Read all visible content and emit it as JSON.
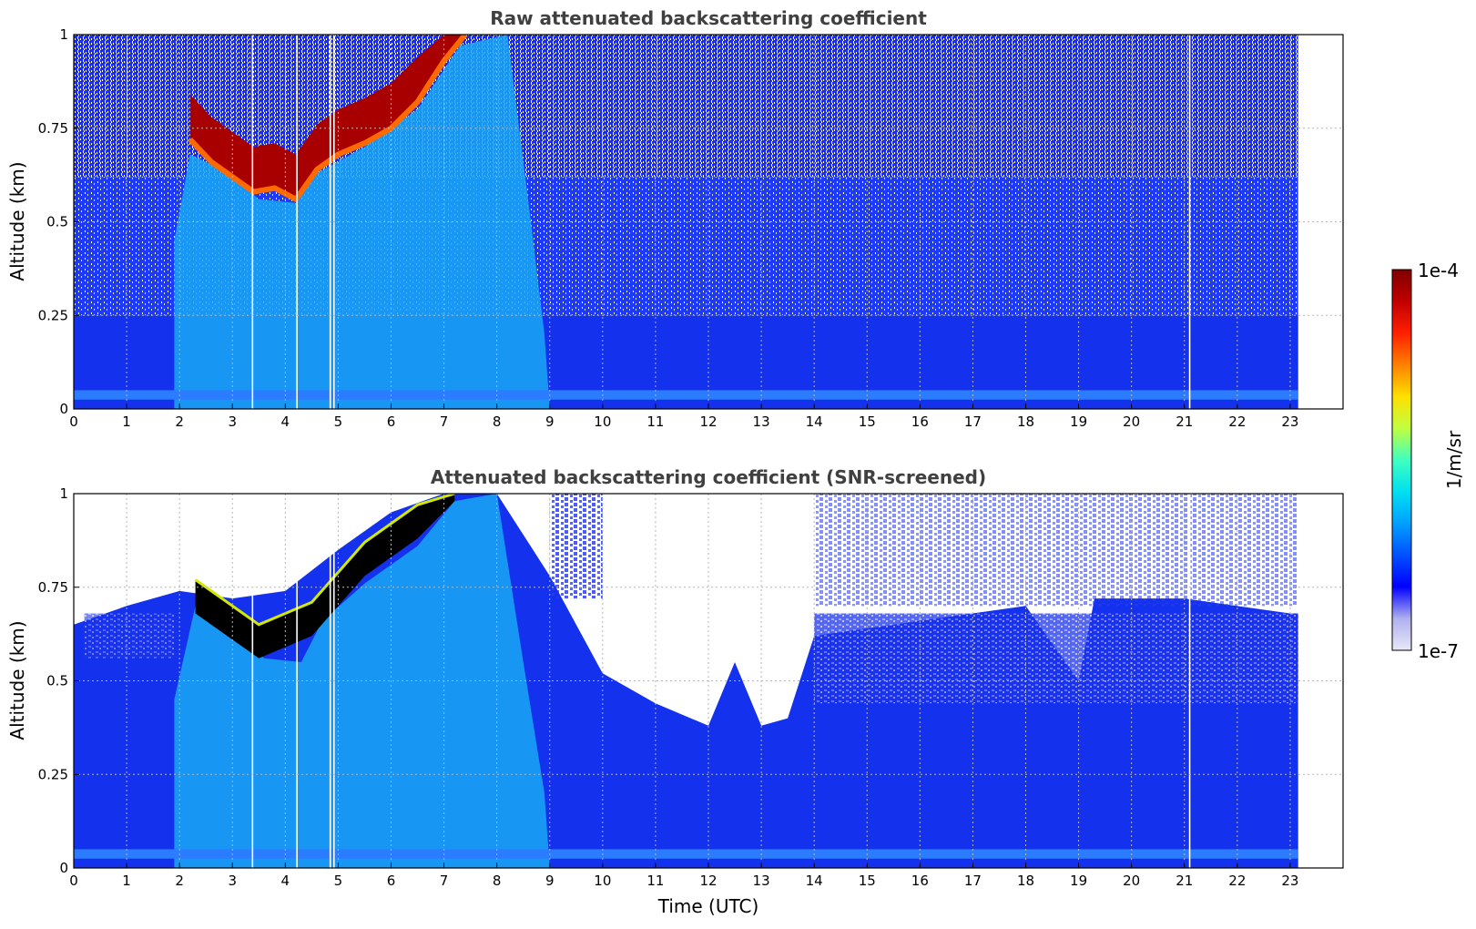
{
  "chart_data": [
    {
      "type": "heatmap",
      "title": "Raw attenuated backscattering coefficient",
      "xlabel": "",
      "ylabel": "Altitude (km)",
      "xlim": [
        0,
        24
      ],
      "ylim": [
        0,
        1
      ],
      "xticks": [
        "0",
        "1",
        "2",
        "3",
        "4",
        "5",
        "6",
        "7",
        "8",
        "9",
        "10",
        "11",
        "12",
        "13",
        "14",
        "15",
        "16",
        "17",
        "18",
        "19",
        "20",
        "21",
        "22",
        "23"
      ],
      "yticks": [
        "0",
        "0.25",
        "0.5",
        "0.75",
        "1"
      ],
      "ytick_values": [
        0,
        0.25,
        0.5,
        0.75,
        1
      ],
      "grid": true,
      "data_end_time": 23.15,
      "color_scale": "log",
      "cloud_base_km": [
        {
          "time": 2.2,
          "altitude": 0.72
        },
        {
          "time": 2.6,
          "altitude": 0.66
        },
        {
          "time": 3.0,
          "altitude": 0.62
        },
        {
          "time": 3.4,
          "altitude": 0.58
        },
        {
          "time": 3.8,
          "altitude": 0.59
        },
        {
          "time": 4.2,
          "altitude": 0.56
        },
        {
          "time": 4.6,
          "altitude": 0.64
        },
        {
          "time": 5.0,
          "altitude": 0.68
        },
        {
          "time": 5.5,
          "altitude": 0.71
        },
        {
          "time": 6.0,
          "altitude": 0.75
        },
        {
          "time": 6.5,
          "altitude": 0.82
        },
        {
          "time": 7.0,
          "altitude": 0.93
        },
        {
          "time": 7.4,
          "altitude": 1.0
        }
      ],
      "data_gap_times": [
        3.38,
        4.22,
        4.85,
        4.92,
        21.1
      ]
    },
    {
      "type": "heatmap",
      "title": "Attenuated backscattering coefficient (SNR-screened)",
      "xlabel": "Time (UTC)",
      "ylabel": "Altitude (km)",
      "xlim": [
        0,
        24
      ],
      "ylim": [
        0,
        1
      ],
      "xticks": [
        "0",
        "1",
        "2",
        "3",
        "4",
        "5",
        "6",
        "7",
        "8",
        "9",
        "10",
        "11",
        "12",
        "13",
        "14",
        "15",
        "16",
        "17",
        "18",
        "19",
        "20",
        "21",
        "22",
        "23"
      ],
      "yticks": [
        "0",
        "0.25",
        "0.5",
        "0.75",
        "1"
      ],
      "ytick_values": [
        0,
        0.25,
        0.5,
        0.75,
        1
      ],
      "grid": true,
      "data_end_time": 23.15,
      "color_scale": "log",
      "signal_top_km": [
        {
          "time": 0.0,
          "altitude": 0.65
        },
        {
          "time": 1.0,
          "altitude": 0.7
        },
        {
          "time": 2.0,
          "altitude": 0.74
        },
        {
          "time": 3.0,
          "altitude": 0.72
        },
        {
          "time": 4.0,
          "altitude": 0.74
        },
        {
          "time": 5.0,
          "altitude": 0.85
        },
        {
          "time": 6.0,
          "altitude": 0.95
        },
        {
          "time": 7.0,
          "altitude": 1.0
        },
        {
          "time": 8.0,
          "altitude": 1.0
        },
        {
          "time": 9.0,
          "altitude": 0.78
        },
        {
          "time": 10.0,
          "altitude": 0.52
        },
        {
          "time": 11.0,
          "altitude": 0.44
        },
        {
          "time": 12.0,
          "altitude": 0.38
        },
        {
          "time": 12.5,
          "altitude": 0.55
        },
        {
          "time": 13.0,
          "altitude": 0.38
        },
        {
          "time": 13.5,
          "altitude": 0.4
        },
        {
          "time": 14.0,
          "altitude": 0.62
        },
        {
          "time": 16.0,
          "altitude": 0.66
        },
        {
          "time": 18.0,
          "altitude": 0.7
        },
        {
          "time": 19.0,
          "altitude": 0.5
        },
        {
          "time": 19.3,
          "altitude": 0.72
        },
        {
          "time": 21.0,
          "altitude": 0.72
        },
        {
          "time": 23.0,
          "altitude": 0.68
        }
      ],
      "saturated_cloud_band": [
        {
          "time": 2.3,
          "altitude": 0.68
        },
        {
          "time": 3.5,
          "altitude": 0.56
        },
        {
          "time": 4.5,
          "altitude": 0.62
        },
        {
          "time": 5.5,
          "altitude": 0.78
        },
        {
          "time": 6.5,
          "altitude": 0.88
        },
        {
          "time": 7.2,
          "altitude": 0.98
        }
      ],
      "data_gap_times": [
        3.38,
        4.22,
        4.85,
        4.92,
        21.1
      ]
    }
  ],
  "colorbar": {
    "label": "1/m/sr",
    "max_label": "1e-4",
    "min_label": "1e-7",
    "max_value": 0.0001,
    "min_value": 1e-07,
    "colormap": [
      "#e8e8f8",
      "#b0b0ee",
      "#0000ff",
      "#0050ff",
      "#00a0ff",
      "#00e0f0",
      "#40ffc0",
      "#c0ff40",
      "#ffe000",
      "#ff8000",
      "#ff2000",
      "#c00000",
      "#800000"
    ]
  }
}
